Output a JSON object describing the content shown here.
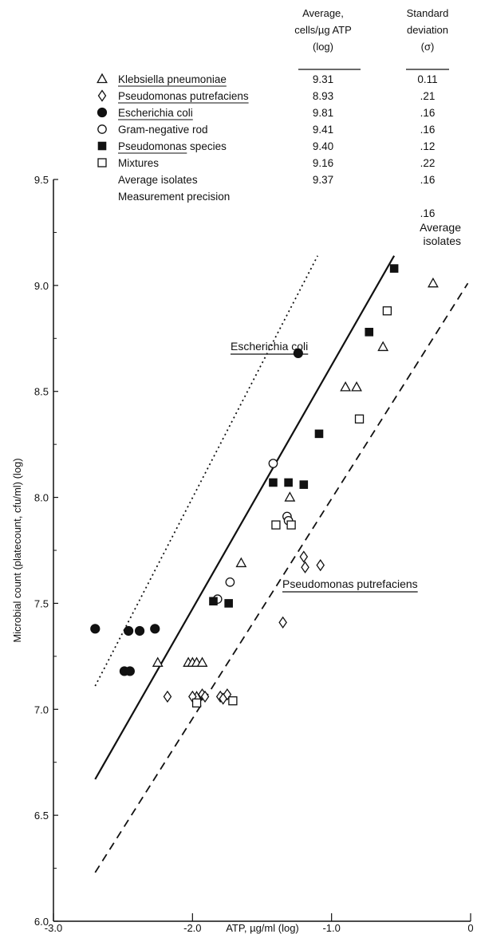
{
  "chart_data": {
    "type": "scatter",
    "xlabel": "ATP, µg/ml (log)",
    "ylabel": "Microbial count (platecount, cfu/ml) (log)",
    "xlim": [
      -3.0,
      0
    ],
    "ylim": [
      6.0,
      9.5
    ],
    "x_ticks": [
      "-3.0",
      "-2.0",
      "-1.0",
      "0"
    ],
    "y_ticks": [
      "6.0",
      "6.5",
      "7.0",
      "7.5",
      "8.0",
      "8.5",
      "9.0",
      "9.5"
    ],
    "grid": false,
    "legend_placement": "top",
    "table_headers": {
      "average": [
        "Average,",
        "cells/µg ATP",
        "(log)"
      ],
      "sd": [
        "Standard",
        "deviation",
        "(σ)"
      ]
    },
    "series": [
      {
        "name": "Klebsiella pneumoniae",
        "marker": "triangle-open",
        "underline": true,
        "average": "9.31",
        "sd": "0.11",
        "points": [
          [
            -0.27,
            9.01
          ],
          [
            -0.63,
            8.71
          ],
          [
            -0.9,
            8.52
          ],
          [
            -0.82,
            8.52
          ],
          [
            -1.3,
            8.0
          ],
          [
            -1.65,
            7.69
          ],
          [
            -2.25,
            7.22
          ],
          [
            -2.03,
            7.22
          ],
          [
            -2.0,
            7.22
          ],
          [
            -1.97,
            7.22
          ],
          [
            -1.93,
            7.22
          ],
          [
            -1.97,
            7.06
          ]
        ]
      },
      {
        "name": "Pseudomonas putrefaciens",
        "marker": "diamond-open",
        "underline": true,
        "average": "8.93",
        "sd": ".21",
        "points": [
          [
            -1.2,
            7.72
          ],
          [
            -1.19,
            7.67
          ],
          [
            -1.08,
            7.68
          ],
          [
            -1.35,
            7.41
          ],
          [
            -2.18,
            7.06
          ],
          [
            -2.0,
            7.06
          ],
          [
            -1.93,
            7.07
          ],
          [
            -1.91,
            7.06
          ],
          [
            -1.8,
            7.06
          ],
          [
            -1.75,
            7.07
          ],
          [
            -1.78,
            7.05
          ]
        ]
      },
      {
        "name": "Escherichia coli",
        "marker": "circle-filled",
        "underline": true,
        "average": "9.81",
        "sd": ".16",
        "points": [
          [
            -1.24,
            8.68
          ],
          [
            -2.7,
            7.38
          ],
          [
            -2.46,
            7.37
          ],
          [
            -2.38,
            7.37
          ],
          [
            -2.27,
            7.38
          ],
          [
            -2.49,
            7.18
          ],
          [
            -2.45,
            7.18
          ]
        ]
      },
      {
        "name": "Gram-negative rod",
        "marker": "circle-open",
        "underline": false,
        "average": "9.41",
        "sd": ".16",
        "points": [
          [
            -1.42,
            8.16
          ],
          [
            -1.32,
            7.91
          ],
          [
            -1.31,
            7.89
          ],
          [
            -1.73,
            7.6
          ],
          [
            -1.82,
            7.52
          ]
        ]
      },
      {
        "name": "Pseudomonas species",
        "marker": "square-filled",
        "underline": true,
        "underline_text": "Pseudomonas",
        "average": "9.40",
        "sd": ".12",
        "points": [
          [
            -0.55,
            9.08
          ],
          [
            -0.73,
            8.78
          ],
          [
            -1.09,
            8.3
          ],
          [
            -1.42,
            8.07
          ],
          [
            -1.31,
            8.07
          ],
          [
            -1.2,
            8.06
          ],
          [
            -1.85,
            7.51
          ],
          [
            -1.74,
            7.5
          ]
        ]
      },
      {
        "name": "Mixtures",
        "marker": "square-open",
        "underline": false,
        "average": "9.16",
        "sd": ".22",
        "points": [
          [
            -0.6,
            8.88
          ],
          [
            -0.8,
            8.37
          ],
          [
            -1.4,
            7.87
          ],
          [
            -1.29,
            7.87
          ],
          [
            -1.97,
            7.03
          ],
          [
            -1.71,
            7.04
          ]
        ]
      }
    ],
    "extra_rows": [
      {
        "name": "Average isolates",
        "average": "9.37",
        "sd": ".16"
      },
      {
        "name": "Measurement precision",
        "average": "",
        "sd": ".16"
      }
    ],
    "lines": [
      {
        "name": "Escherichia coli",
        "label": "Escherichia coli",
        "style": "dotted",
        "x": [
          -2.7,
          -1.1
        ],
        "y": [
          7.11,
          9.14
        ]
      },
      {
        "name": "Average isolates",
        "label": [
          "Average",
          "isolates"
        ],
        "style": "solid",
        "x": [
          -2.7,
          -0.55
        ],
        "y": [
          6.67,
          9.14
        ]
      },
      {
        "name": "Pseudomonas putrefaciens",
        "label": "Pseudomonas putrefaciens",
        "style": "dashed",
        "x": [
          -2.7,
          -0.02
        ],
        "y": [
          6.23,
          9.01
        ]
      }
    ]
  }
}
